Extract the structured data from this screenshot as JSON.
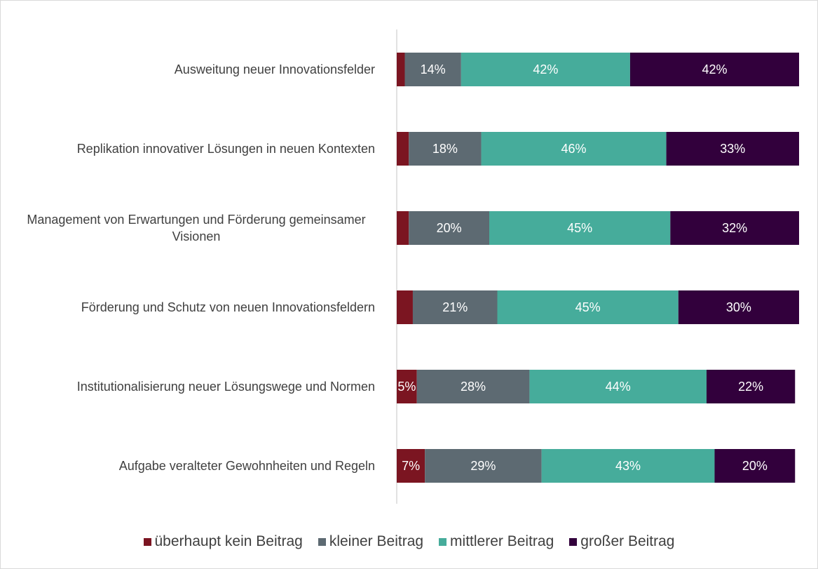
{
  "chart_data": {
    "type": "stacked-bar-horizontal",
    "categories": [
      "Ausweitung neuer Innovationsfelder",
      "Replikation innovativer Lösungen in neuen Kontexten",
      "Management von Erwartungen und Förderung gemeinsamer Visionen",
      "Förderung und Schutz von neuen Innovationsfeldern",
      "Institutionalisierung neuer Lösungswege und Normen",
      "Aufgabe veralteter Gewohnheiten und Regeln"
    ],
    "series": [
      {
        "name": "überhaupt kein Beitrag",
        "color": "#7b1521",
        "values": [
          2,
          3,
          3,
          4,
          5,
          7
        ],
        "value_labels": [
          null,
          null,
          null,
          null,
          "5%",
          "7%"
        ]
      },
      {
        "name": "kleiner Beitrag",
        "color": "#5d6a72",
        "values": [
          14,
          18,
          20,
          21,
          28,
          29
        ],
        "value_labels": [
          "14%",
          "18%",
          "20%",
          "21%",
          "28%",
          "29%"
        ]
      },
      {
        "name": "mittlerer Beitrag",
        "color": "#46ac9b",
        "values": [
          42,
          46,
          45,
          45,
          44,
          43
        ],
        "value_labels": [
          "42%",
          "46%",
          "45%",
          "45%",
          "44%",
          "43%"
        ]
      },
      {
        "name": "großer Beitrag",
        "color": "#32003c",
        "values": [
          42,
          33,
          32,
          30,
          22,
          20
        ],
        "value_labels": [
          "42%",
          "33%",
          "32%",
          "30%",
          "22%",
          "20%"
        ]
      }
    ],
    "xlim": [
      0,
      100
    ],
    "legend": "bottom"
  }
}
